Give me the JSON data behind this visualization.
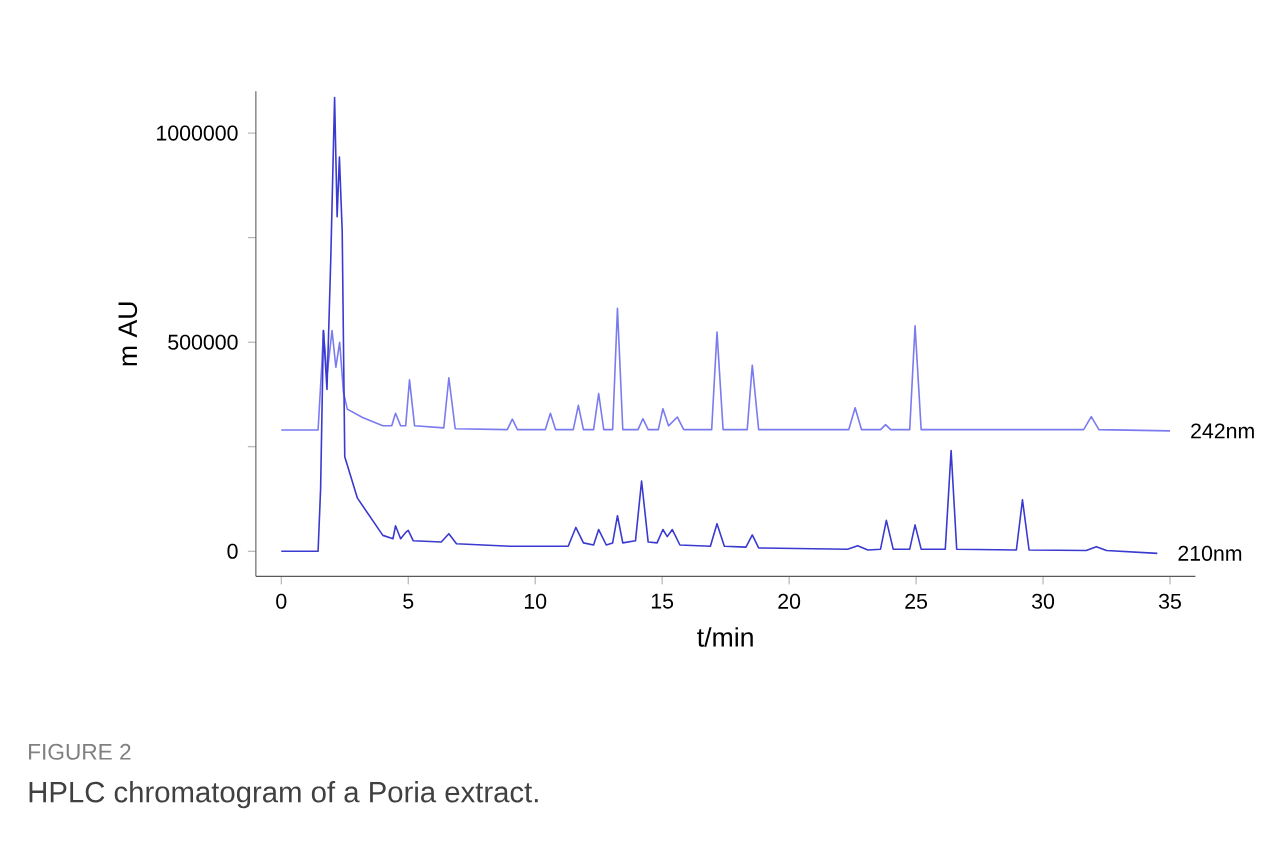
{
  "chart_data": {
    "type": "line",
    "xlabel": "t/min",
    "ylabel": "m AU",
    "xlim": [
      -1,
      36
    ],
    "ylim": [
      -60000,
      1100000
    ],
    "xticks": [
      0,
      5,
      10,
      15,
      20,
      25,
      30,
      35
    ],
    "yticks": [
      0,
      {
        "value": 250000,
        "label": null
      },
      500000,
      {
        "value": 750000,
        "label": null
      },
      1000000
    ],
    "annotations": [
      "FIGURE 2",
      "HPLC chromatogram of a Poria extract."
    ],
    "series": [
      {
        "name": "242nm",
        "color": "#7b7bf0",
        "x": [
          0,
          1.45,
          1.6,
          1.66,
          1.8,
          2.0,
          2.15,
          2.3,
          2.45,
          2.6,
          3.2,
          4.0,
          4.35,
          4.5,
          4.7,
          4.9,
          5.05,
          5.25,
          6.4,
          6.6,
          6.85,
          8.9,
          9.1,
          9.3,
          10.4,
          10.6,
          10.8,
          11.5,
          11.7,
          11.9,
          12.3,
          12.5,
          12.7,
          13.05,
          13.24,
          13.45,
          14.05,
          14.24,
          14.45,
          14.85,
          15.03,
          15.25,
          15.6,
          15.85,
          16.95,
          17.16,
          17.4,
          18.35,
          18.55,
          18.8,
          22.35,
          22.6,
          22.85,
          23.6,
          23.8,
          24.0,
          24.75,
          24.96,
          25.2,
          31.6,
          31.9,
          32.2,
          35
        ],
        "values": [
          290000,
          290000,
          450000,
          528000,
          420000,
          528000,
          440000,
          500000,
          380000,
          340000,
          320000,
          300000,
          300000,
          330000,
          300000,
          300000,
          410000,
          300000,
          295000,
          415000,
          293000,
          291000,
          316000,
          291000,
          291000,
          330000,
          291000,
          291000,
          349000,
          291000,
          291000,
          377000,
          291000,
          291000,
          581000,
          291000,
          291000,
          317000,
          291000,
          291000,
          341000,
          300000,
          321000,
          291000,
          291000,
          524000,
          291000,
          291000,
          445000,
          291000,
          291000,
          343000,
          291000,
          291000,
          303000,
          291000,
          291000,
          539000,
          291000,
          291000,
          322000,
          291000,
          288000
        ]
      },
      {
        "name": "210nm",
        "color": "#3a3ad0",
        "x": [
          0,
          1.45,
          1.55,
          1.66,
          1.8,
          1.95,
          2.1,
          2.2,
          2.29,
          2.4,
          2.5,
          3.0,
          4.0,
          4.4,
          4.5,
          4.7,
          4.9,
          5.0,
          5.2,
          6.3,
          6.6,
          6.9,
          9.0,
          11.3,
          11.6,
          11.9,
          12.3,
          12.5,
          12.8,
          13.05,
          13.24,
          13.45,
          13.95,
          14.19,
          14.45,
          14.8,
          15.03,
          15.2,
          15.4,
          15.7,
          16.9,
          17.16,
          17.45,
          18.3,
          18.55,
          18.8,
          22.3,
          22.7,
          23.1,
          23.6,
          23.83,
          24.1,
          24.75,
          24.96,
          25.2,
          26.15,
          26.38,
          26.6,
          28.95,
          29.19,
          29.45,
          31.7,
          32.1,
          32.5,
          34.5
        ],
        "values": [
          0,
          0,
          150000,
          528000,
          387000,
          700000,
          1085000,
          800000,
          943000,
          764000,
          226000,
          127000,
          38000,
          30000,
          61000,
          30000,
          45000,
          50000,
          25000,
          22000,
          42000,
          18000,
          12000,
          12000,
          57000,
          20000,
          15000,
          52000,
          15000,
          20000,
          85000,
          20000,
          25000,
          168000,
          22000,
          20000,
          52000,
          35000,
          52000,
          15000,
          12000,
          66000,
          12000,
          10000,
          39000,
          8000,
          5000,
          13000,
          3000,
          5000,
          74000,
          5000,
          5000,
          63000,
          5000,
          5000,
          241000,
          5000,
          3000,
          123000,
          3000,
          2000,
          11000,
          2000,
          -5000
        ]
      }
    ]
  }
}
